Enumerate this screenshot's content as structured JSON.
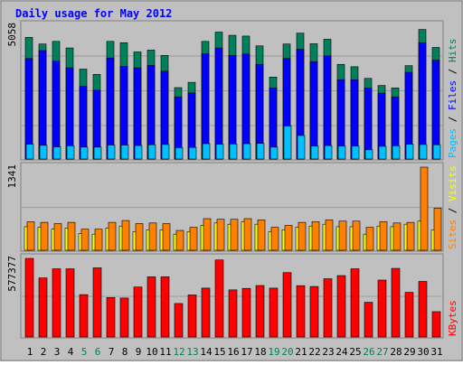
{
  "title": "Daily usage for May 2012",
  "colors": {
    "background": "#C0C0C0",
    "hits": "#00805C",
    "files": "#0000FF",
    "pages": "#00C0FF",
    "visits": "#FFFF00",
    "sites": "#FF8000",
    "kbytes": "#FF0000",
    "weekend_label": "#00805C",
    "weekday_label": "#000000",
    "title": "#0000FF"
  },
  "chart_data": [
    {
      "type": "bar",
      "name": "hits-files-pages",
      "ymax_label": "5058",
      "ylim": [
        0,
        5058
      ],
      "legend": [
        {
          "text": "Pages",
          "color": "#00C0FF"
        },
        {
          "text": " / ",
          "color": "#000000"
        },
        {
          "text": "Files",
          "color": "#0000FF"
        },
        {
          "text": " / ",
          "color": "#000000"
        },
        {
          "text": "Hits",
          "color": "#00805C"
        }
      ],
      "categories": [
        "1",
        "2",
        "3",
        "4",
        "5",
        "6",
        "7",
        "8",
        "9",
        "10",
        "11",
        "12",
        "13",
        "14",
        "15",
        "16",
        "17",
        "18",
        "19",
        "20",
        "21",
        "22",
        "23",
        "24",
        "25",
        "26",
        "27",
        "28",
        "29",
        "30",
        "31"
      ],
      "series": [
        {
          "name": "Hits",
          "values": [
            4600,
            4350,
            4450,
            4200,
            3400,
            3200,
            4450,
            4400,
            4050,
            4120,
            3920,
            2700,
            2900,
            4450,
            4800,
            4680,
            4650,
            4280,
            3100,
            4350,
            4760,
            4360,
            4530,
            3580,
            3490,
            3050,
            2780,
            2690,
            3530,
            4900,
            4220
          ]
        },
        {
          "name": "Files",
          "values": [
            3800,
            4100,
            3700,
            3450,
            2750,
            2600,
            3820,
            3500,
            3450,
            3540,
            3320,
            2350,
            2500,
            3980,
            4200,
            3920,
            3970,
            3580,
            2690,
            3800,
            4150,
            3680,
            3900,
            3000,
            3000,
            2680,
            2490,
            2350,
            3280,
            4400,
            3740
          ]
        },
        {
          "name": "Pages",
          "values": [
            560,
            520,
            460,
            500,
            450,
            450,
            530,
            530,
            510,
            540,
            550,
            430,
            440,
            580,
            560,
            570,
            580,
            590,
            450,
            1250,
            890,
            490,
            510,
            490,
            490,
            350,
            480,
            500,
            560,
            550,
            540
          ]
        }
      ]
    },
    {
      "type": "bar",
      "name": "visits-sites",
      "ymax_label": "1341",
      "ylim": [
        0,
        1341
      ],
      "legend": [
        {
          "text": "Sites",
          "color": "#FF8000"
        },
        {
          "text": " / ",
          "color": "#000000"
        },
        {
          "text": "Visits",
          "color": "#FFFF00"
        }
      ],
      "categories": [
        "1",
        "2",
        "3",
        "4",
        "5",
        "6",
        "7",
        "8",
        "9",
        "10",
        "11",
        "12",
        "13",
        "14",
        "15",
        "16",
        "17",
        "18",
        "19",
        "20",
        "21",
        "22",
        "23",
        "24",
        "25",
        "26",
        "27",
        "28",
        "29",
        "30",
        "31"
      ],
      "series": [
        {
          "name": "Visits",
          "values": [
            380,
            370,
            340,
            360,
            270,
            260,
            360,
            390,
            300,
            330,
            330,
            260,
            300,
            400,
            440,
            420,
            460,
            420,
            300,
            330,
            370,
            390,
            420,
            380,
            380,
            260,
            390,
            380,
            420,
            470,
            330
          ]
        },
        {
          "name": "Sites",
          "values": [
            460,
            450,
            430,
            450,
            340,
            340,
            450,
            480,
            430,
            440,
            430,
            320,
            370,
            510,
            500,
            500,
            510,
            490,
            370,
            400,
            450,
            460,
            490,
            470,
            470,
            370,
            460,
            440,
            450,
            1341,
            680
          ]
        }
      ]
    },
    {
      "type": "bar",
      "name": "kbytes",
      "ymax_label": "577377",
      "ylim": [
        0,
        577377
      ],
      "legend": [
        {
          "text": "KBytes",
          "color": "#FF0000"
        }
      ],
      "categories": [
        "1",
        "2",
        "3",
        "4",
        "5",
        "6",
        "7",
        "8",
        "9",
        "10",
        "11",
        "12",
        "13",
        "14",
        "15",
        "16",
        "17",
        "18",
        "19",
        "20",
        "21",
        "22",
        "23",
        "24",
        "25",
        "26",
        "27",
        "28",
        "29",
        "30",
        "31"
      ],
      "series": [
        {
          "name": "KBytes",
          "values": [
            577377,
            434000,
            501000,
            501000,
            311000,
            508000,
            290000,
            286000,
            367000,
            442000,
            442000,
            246000,
            309000,
            359000,
            566000,
            346000,
            357000,
            378000,
            359000,
            473000,
            377000,
            371000,
            428000,
            451000,
            501000,
            255000,
            418000,
            504000,
            328000,
            408000,
            186000
          ]
        }
      ]
    }
  ],
  "x_axis": {
    "labels": [
      "1",
      "2",
      "3",
      "4",
      "5",
      "6",
      "7",
      "8",
      "9",
      "10",
      "11",
      "12",
      "13",
      "14",
      "15",
      "16",
      "17",
      "18",
      "19",
      "20",
      "21",
      "22",
      "23",
      "24",
      "25",
      "26",
      "27",
      "28",
      "29",
      "30",
      "31"
    ],
    "weekend_days": [
      "5",
      "6",
      "12",
      "13",
      "19",
      "20",
      "26",
      "27"
    ]
  }
}
